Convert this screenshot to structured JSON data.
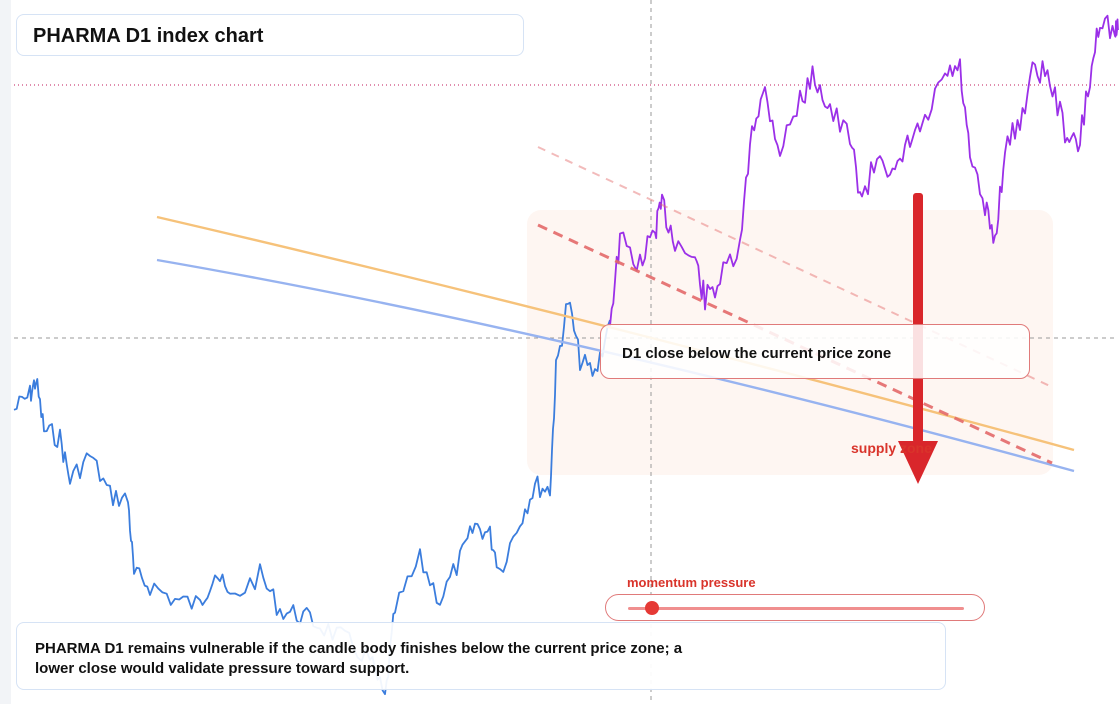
{
  "title": "PHARMA D1 index chart",
  "callout_text": "D1 close below the current price zone",
  "supply_label": "supply zone",
  "momentum": {
    "label": "momentum pressure",
    "level": 0.07
  },
  "caption": "PHARMA D1 remains vulnerable if the candle body finishes below the current price zone; a lower close would validate pressure toward support.",
  "colors": {
    "price_early": "#3b7ddd",
    "price_late": "#9b30e8",
    "ma_orange": "#f6c27a",
    "ma_blue": "#97b3f0",
    "trend_red": "#e46a6a",
    "arrow_red": "#d9262b",
    "crosshair": "#9a9a9a",
    "resistance_dotted": "#c2185b"
  },
  "chart_data": {
    "type": "line",
    "grid": false,
    "legend": "none",
    "xlim": [
      0,
      100
    ],
    "ylim": [
      0,
      100
    ],
    "series": [
      {
        "segment": "early",
        "points": [
          [
            0,
            72
          ],
          [
            1.2,
            71
          ],
          [
            2,
            75
          ],
          [
            3,
            78
          ],
          [
            4,
            73
          ],
          [
            5,
            70
          ],
          [
            6,
            71
          ],
          [
            7,
            69
          ],
          [
            8,
            64
          ],
          [
            9,
            62
          ],
          [
            10,
            64
          ],
          [
            11,
            62
          ],
          [
            12,
            57
          ],
          [
            13,
            55
          ],
          [
            14,
            56
          ],
          [
            15,
            52
          ],
          [
            16,
            51
          ],
          [
            17,
            45
          ],
          [
            18,
            43
          ],
          [
            19,
            42
          ],
          [
            20,
            41
          ],
          [
            21,
            40
          ],
          [
            22,
            41
          ],
          [
            23,
            38
          ],
          [
            24,
            37
          ],
          [
            25,
            38
          ],
          [
            26,
            36
          ],
          [
            27,
            34
          ],
          [
            28,
            33
          ],
          [
            29,
            32
          ],
          [
            30,
            31
          ],
          [
            31,
            31
          ],
          [
            32,
            29
          ],
          [
            33,
            30
          ],
          [
            34,
            26
          ],
          [
            35,
            29
          ],
          [
            36,
            31
          ],
          [
            37,
            35
          ],
          [
            38,
            40
          ],
          [
            39,
            42
          ],
          [
            40,
            41
          ],
          [
            41,
            47
          ],
          [
            42,
            52
          ],
          [
            43,
            50
          ],
          [
            44,
            57
          ],
          [
            45,
            60
          ],
          [
            46,
            66
          ],
          [
            47,
            68
          ],
          [
            48,
            69
          ],
          [
            49,
            77
          ],
          [
            50,
            85
          ],
          [
            51,
            93
          ],
          [
            52,
            91
          ],
          [
            53,
            94
          ],
          [
            54,
            92
          ],
          [
            55,
            93
          ],
          [
            56,
            95
          ],
          [
            57,
            96
          ],
          [
            58,
            97
          ]
        ]
      },
      {
        "segment": "late",
        "points": [
          [
            58,
            97
          ],
          [
            59,
            100
          ],
          [
            60,
            102
          ],
          [
            61,
            103
          ],
          [
            62,
            104
          ],
          [
            63,
            106
          ],
          [
            64,
            107
          ],
          [
            65,
            109
          ],
          [
            66,
            116
          ],
          [
            67,
            119
          ],
          [
            68,
            121
          ],
          [
            69,
            122
          ],
          [
            70,
            121
          ],
          [
            71,
            120
          ],
          [
            72,
            124
          ],
          [
            73,
            127
          ],
          [
            74,
            126
          ],
          [
            75,
            124
          ],
          [
            76,
            123
          ],
          [
            77,
            127
          ],
          [
            78,
            131
          ],
          [
            79,
            134
          ],
          [
            80,
            135
          ],
          [
            81,
            134
          ],
          [
            82,
            133
          ],
          [
            83,
            130
          ],
          [
            84,
            131
          ],
          [
            85,
            132
          ],
          [
            86,
            135
          ],
          [
            87,
            134
          ],
          [
            88,
            130
          ],
          [
            89,
            128
          ],
          [
            90,
            131
          ],
          [
            91,
            135
          ],
          [
            92,
            137
          ],
          [
            93,
            136
          ],
          [
            94,
            138
          ],
          [
            95,
            141
          ],
          [
            96,
            140
          ],
          [
            97,
            144
          ],
          [
            98,
            146
          ],
          [
            99,
            147
          ],
          [
            100,
            149
          ]
        ]
      }
    ]
  }
}
